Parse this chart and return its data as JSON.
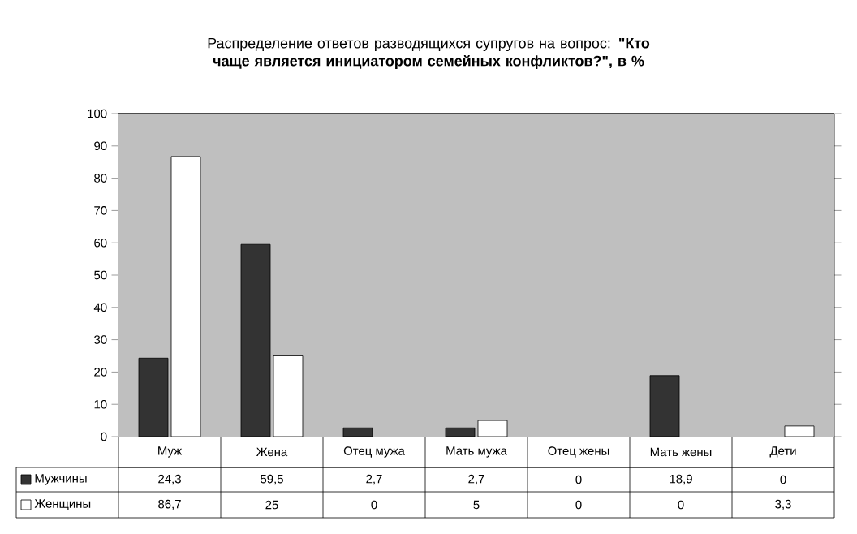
{
  "chart_data": {
    "type": "bar",
    "title": "Распределение ответов разводящихся супругов на вопрос: **\"Кто чаще является инициатором семейных конфликтов?\", в %**",
    "categories": [
      "Муж",
      "Жена",
      "Отец мужа",
      "Мать мужа",
      "Отец жены",
      "Мать жены",
      "Дети"
    ],
    "series": [
      {
        "name": "Мужчины",
        "color": "#333333",
        "values": [
          24.3,
          59.5,
          2.7,
          2.7,
          0,
          18.9,
          0
        ],
        "value_labels": [
          "24,3",
          "59,5",
          "2,7",
          "2,7",
          "0",
          "18,9",
          "0"
        ]
      },
      {
        "name": "Женщины",
        "color": "#ffffff",
        "values": [
          86.7,
          25,
          0,
          5,
          0,
          0,
          3.3
        ],
        "value_labels": [
          "86,7",
          "25",
          "0",
          "5",
          "0",
          "0",
          "3,3"
        ]
      }
    ],
    "ylim": [
      0,
      100
    ],
    "yticks": [
      0,
      10,
      20,
      30,
      40,
      50,
      60,
      70,
      80,
      90,
      100
    ],
    "grid": "y",
    "legend": "bottom"
  }
}
